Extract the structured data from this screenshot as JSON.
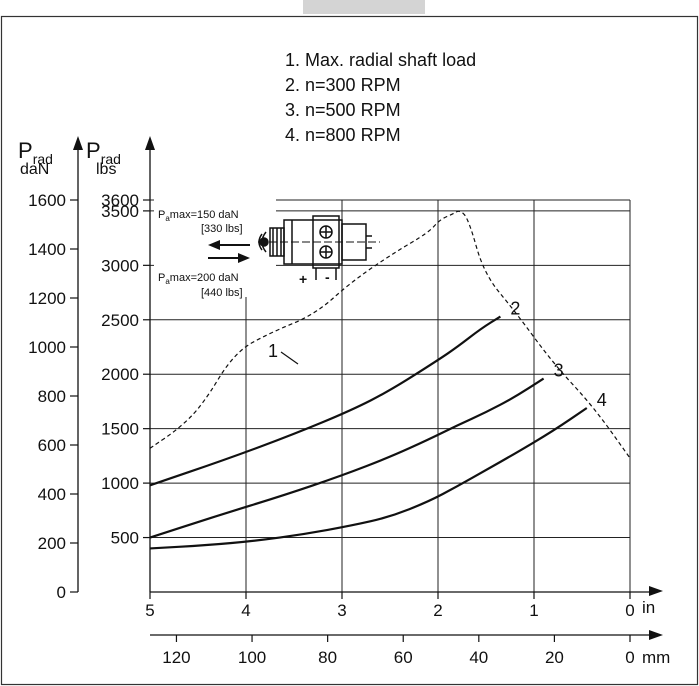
{
  "chart_data": {
    "type": "line",
    "legend": [
      "1. Max. radial shaft load",
      "2. n=300 RPM",
      "3. n=500 RPM",
      "4. n=800 RPM"
    ],
    "left_axis": {
      "symbol": "P",
      "subscript": "rad",
      "unit": "daN",
      "ticks": [
        "1600",
        "1400",
        "1200",
        "1000",
        "800",
        "600",
        "400",
        "200",
        "0"
      ],
      "ylim": [
        0,
        1600
      ]
    },
    "right_axis": {
      "symbol": "P",
      "subscript": "rad",
      "unit": "lbs",
      "ticks": [
        "3600",
        "3500",
        "3000",
        "2500",
        "2000",
        "1500",
        "1000",
        "500"
      ],
      "ylim": [
        0,
        3600
      ]
    },
    "x_axis_in": {
      "unit": "in",
      "ticks": [
        "5",
        "4",
        "3",
        "2",
        "1",
        "0"
      ],
      "xlim": [
        5,
        0
      ]
    },
    "x_axis_mm": {
      "unit": "mm",
      "ticks": [
        "120",
        "100",
        "80",
        "60",
        "40",
        "20",
        "0"
      ],
      "xlim": [
        127,
        0
      ]
    },
    "series": [
      {
        "label": "1",
        "style": "dashed",
        "x": [
          5.0,
          4.7,
          4.45,
          4.12,
          3.75,
          3.28,
          2.9,
          2.45,
          2.1,
          1.98,
          1.85,
          1.77,
          1.68,
          1.52,
          1.2,
          0.8,
          0.38,
          0.0
        ],
        "y": [
          1320,
          1500,
          1720,
          2200,
          2380,
          2550,
          2850,
          3120,
          3300,
          3420,
          3470,
          3510,
          3420,
          2920,
          2580,
          2100,
          1700,
          1230
        ]
      },
      {
        "label": "2",
        "style": "solid",
        "x": [
          5.0,
          4.2,
          3.5,
          2.9,
          2.5,
          2.0,
          1.8,
          1.55,
          1.35
        ],
        "y": [
          980,
          1220,
          1450,
          1670,
          1850,
          2130,
          2250,
          2420,
          2530
        ]
      },
      {
        "label": "3",
        "style": "solid",
        "x": [
          5.0,
          4.3,
          3.6,
          3.0,
          2.5,
          2.1,
          1.8,
          1.5,
          1.2,
          0.9
        ],
        "y": [
          500,
          700,
          890,
          1070,
          1240,
          1400,
          1530,
          1650,
          1790,
          1960
        ]
      },
      {
        "label": "4",
        "style": "solid",
        "x": [
          5.0,
          4.4,
          3.9,
          3.4,
          2.9,
          2.5,
          2.1,
          1.8,
          1.5,
          1.2,
          0.8,
          0.45
        ],
        "y": [
          400,
          430,
          470,
          530,
          610,
          690,
          830,
          970,
          1120,
          1270,
          1480,
          1690
        ]
      }
    ],
    "inset": {
      "axial_push": "P",
      "axial_push_sub": "a",
      "axial_push_value": "max=150 daN",
      "axial_push_lbs": "[330 lbs]",
      "axial_pull": "P",
      "axial_pull_sub": "a",
      "axial_pull_value": "max=200 daN",
      "axial_pull_lbs": "[440 lbs]",
      "plus": "+",
      "minus": "-"
    }
  }
}
